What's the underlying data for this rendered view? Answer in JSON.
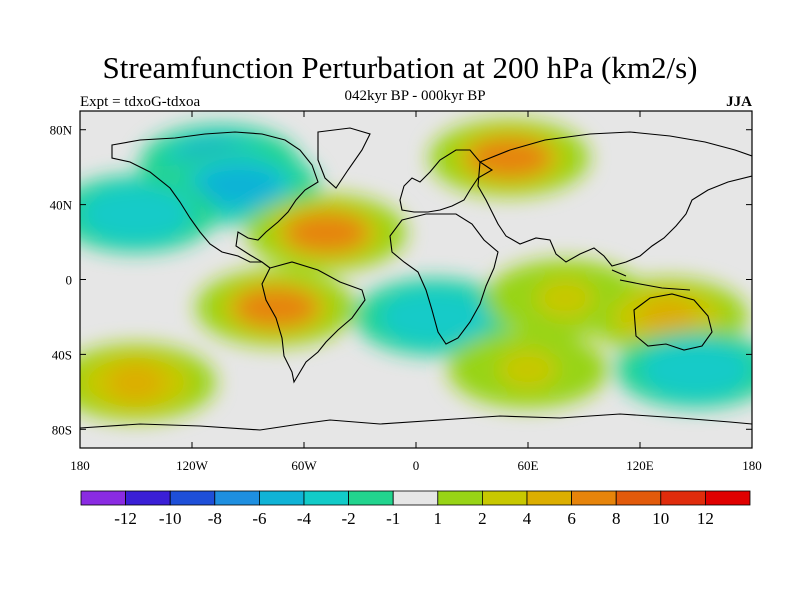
{
  "header": {
    "title": "Streamfunction Perturbation at 200 hPa (km2/s)",
    "subtitle": "042kyr BP - 000kyr BP",
    "left_label": "Expt = tdxoG-tdxoa",
    "right_label": "JJA"
  },
  "map": {
    "projection": "cylindrical-equidistant",
    "lon_range": [
      -180,
      180
    ],
    "lat_range": [
      -90,
      90
    ],
    "x_ticks": [
      "180",
      "120W",
      "60W",
      "0",
      "60E",
      "120E",
      "180"
    ],
    "y_ticks": [
      "80N",
      "40N",
      "0",
      "40S",
      "80S"
    ]
  },
  "colorbar": {
    "colors": [
      "#8a2be2",
      "#3a1fd6",
      "#1e4fd8",
      "#1e8fe0",
      "#10b3d6",
      "#12cbc8",
      "#22d48e",
      "#e6e6e6",
      "#98d416",
      "#c8c800",
      "#dcae00",
      "#e6840a",
      "#e25a0a",
      "#e02c0c",
      "#e00000"
    ],
    "labels": [
      "-12",
      "-10",
      "-8",
      "-6",
      "-4",
      "-2",
      "-1",
      "1",
      "2",
      "4",
      "6",
      "8",
      "10",
      "12"
    ]
  },
  "chart_data": {
    "type": "heatmap",
    "title": "Streamfunction Perturbation at 200 hPa (km2/s)",
    "units": "km2/s",
    "levels": [
      -12,
      -10,
      -8,
      -6,
      -4,
      -2,
      -1,
      1,
      2,
      4,
      6,
      8,
      10,
      12
    ],
    "features": [
      {
        "lon": -105,
        "lat": 62,
        "value": -8
      },
      {
        "lon": -95,
        "lat": 50,
        "value": -6
      },
      {
        "lon": -150,
        "lat": 35,
        "value": -4
      },
      {
        "lon": 50,
        "lat": 65,
        "value": 6
      },
      {
        "lon": -48,
        "lat": 25,
        "value": 6
      },
      {
        "lon": -75,
        "lat": -15,
        "value": 6
      },
      {
        "lon": 10,
        "lat": -20,
        "value": -4
      },
      {
        "lon": 80,
        "lat": -10,
        "value": 2
      },
      {
        "lon": 135,
        "lat": -20,
        "value": 4
      },
      {
        "lon": 150,
        "lat": -48,
        "value": -4
      },
      {
        "lon": -150,
        "lat": -55,
        "value": 4
      },
      {
        "lon": 60,
        "lat": -48,
        "value": 2
      }
    ]
  }
}
